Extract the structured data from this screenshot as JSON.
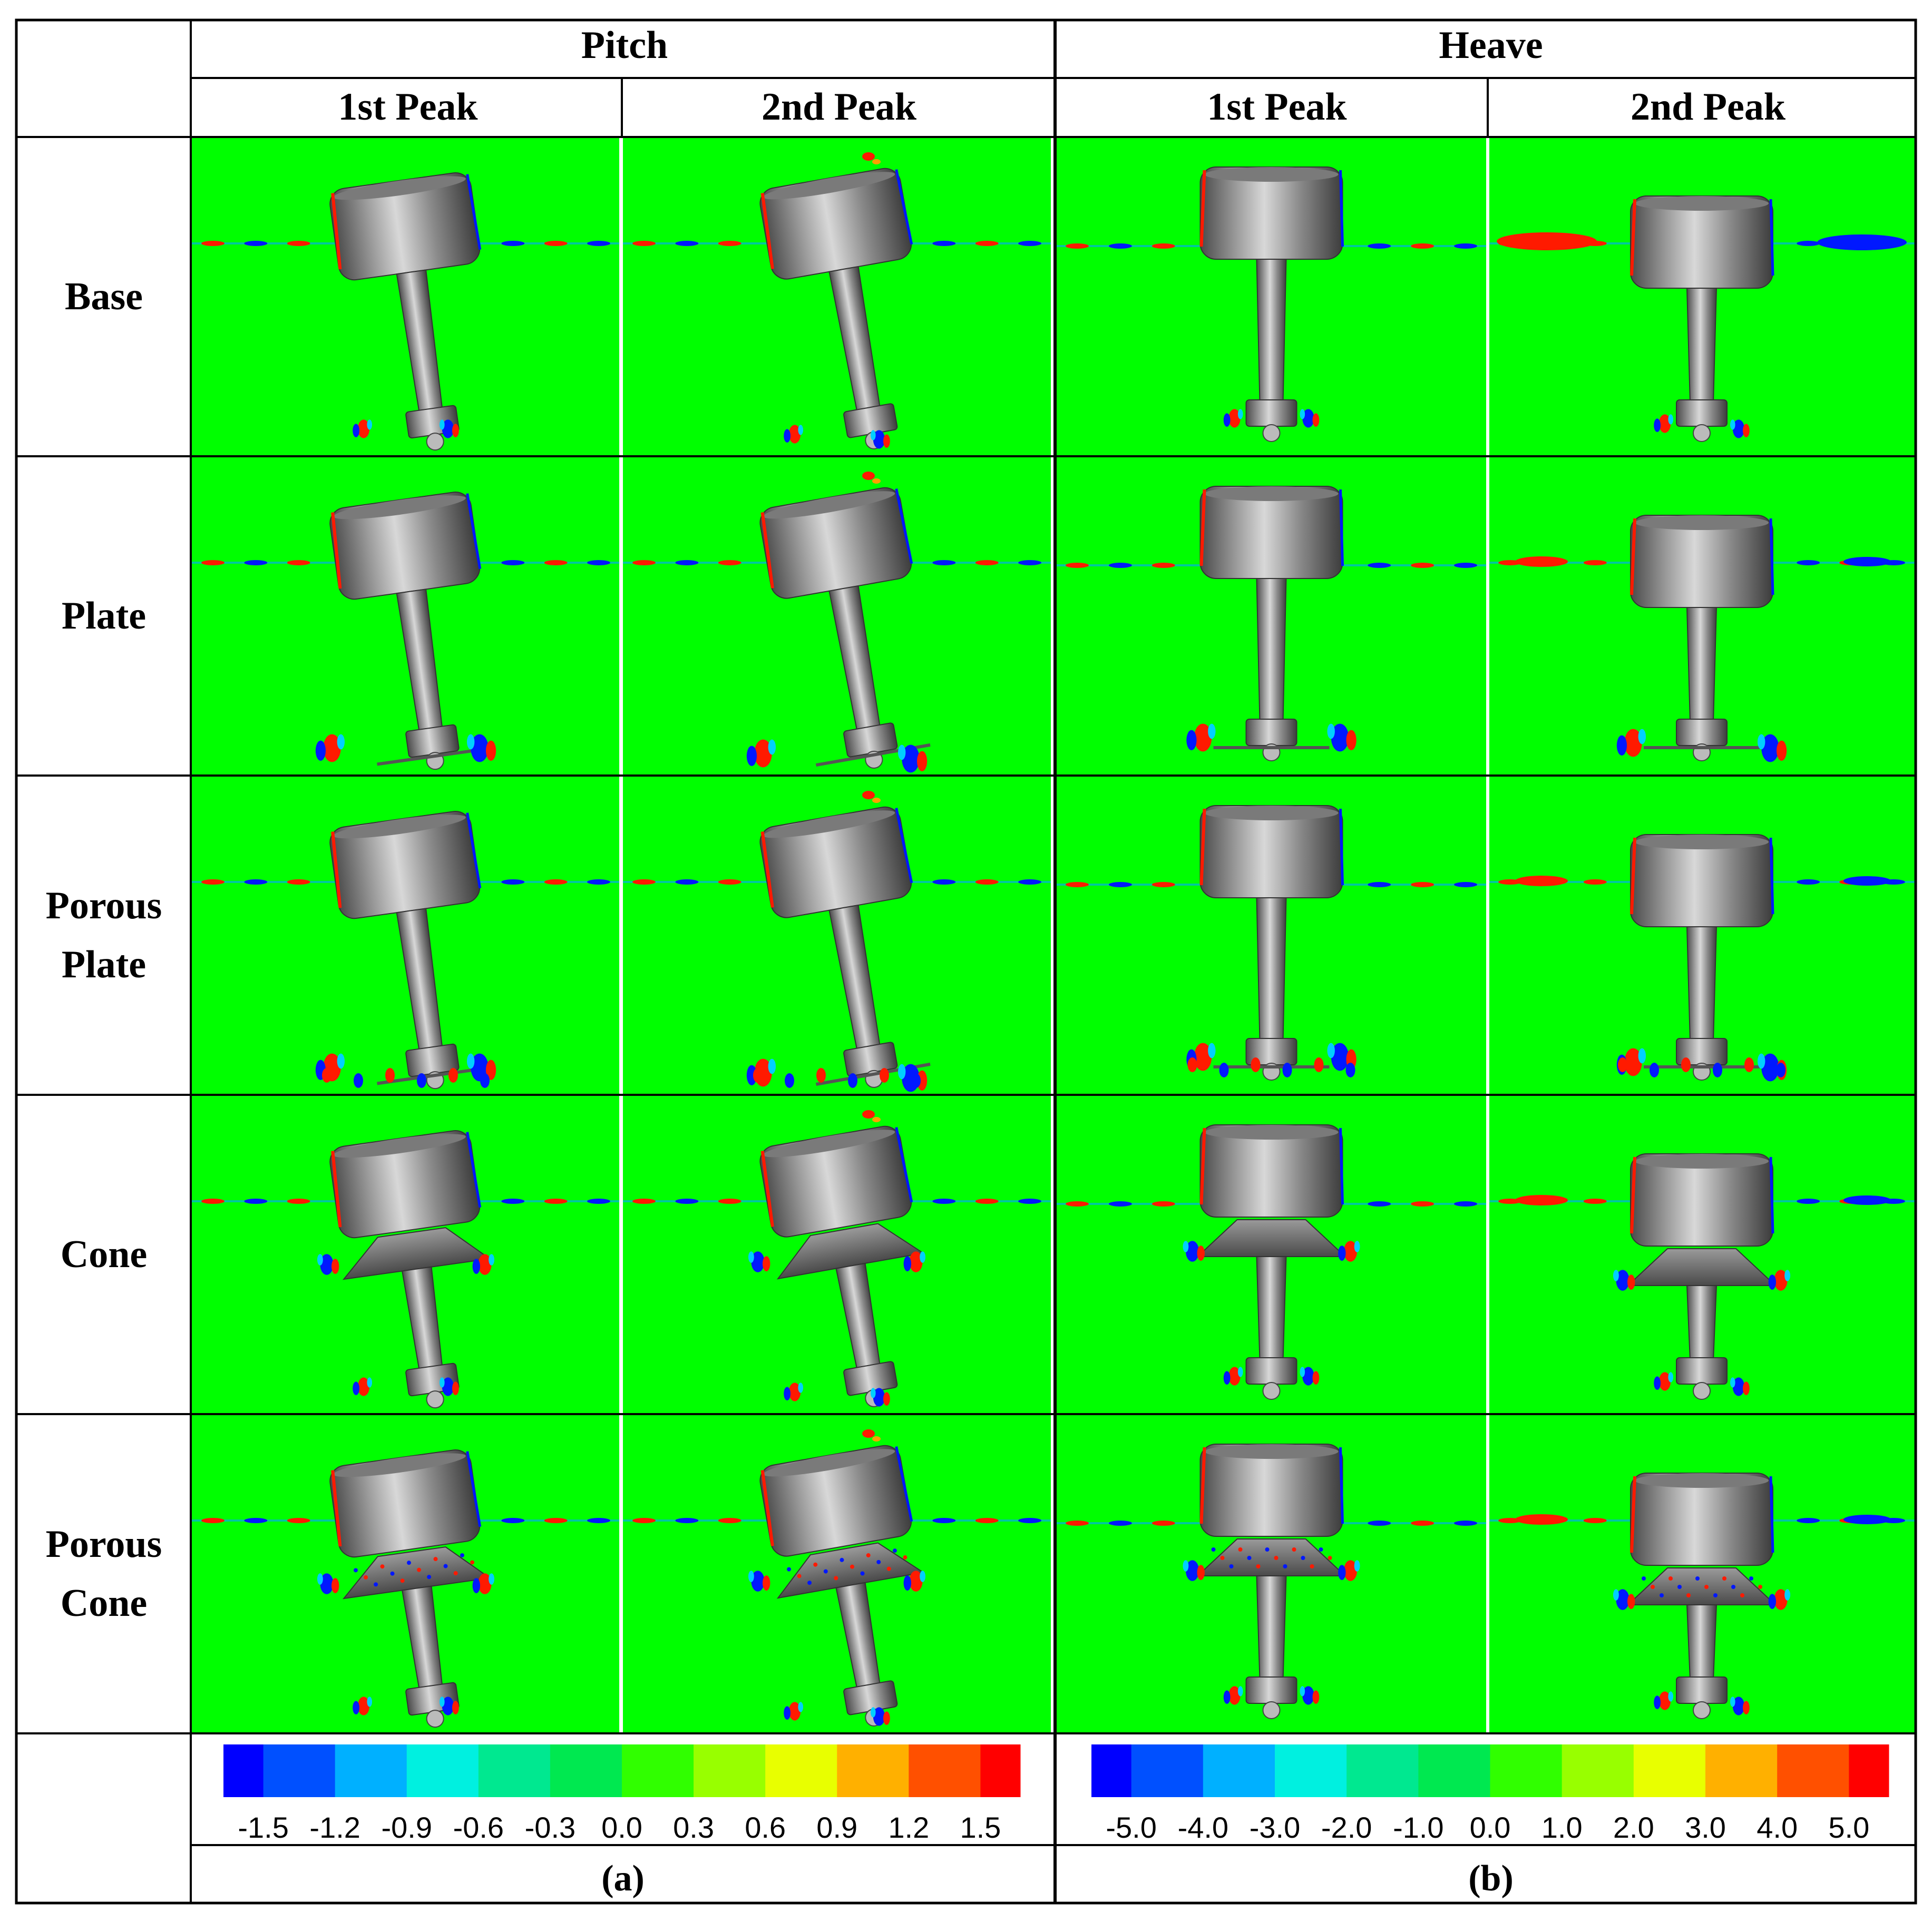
{
  "header": {
    "groups": [
      "Pitch",
      "Heave"
    ],
    "peaks": [
      "1st Peak",
      "2nd Peak",
      "1st Peak",
      "2nd Peak"
    ]
  },
  "rows": [
    {
      "label_lines": [
        "Base"
      ],
      "type": "base"
    },
    {
      "label_lines": [
        "Plate"
      ],
      "type": "plate"
    },
    {
      "label_lines": [
        "Porous",
        "Plate"
      ],
      "type": "porous-plate"
    },
    {
      "label_lines": [
        "Cone"
      ],
      "type": "cone"
    },
    {
      "label_lines": [
        "Porous",
        "Cone"
      ],
      "type": "porous-cone"
    }
  ],
  "colorbars": [
    {
      "ticks": [
        "-1.5",
        "-1.2",
        "-0.9",
        "-0.6",
        "-0.3",
        "0.0",
        "0.3",
        "0.6",
        "0.9",
        "1.2",
        "1.5"
      ]
    },
    {
      "ticks": [
        "-5.0",
        "-4.0",
        "-3.0",
        "-2.0",
        "-1.0",
        "0.0",
        "1.0",
        "2.0",
        "3.0",
        "4.0",
        "5.0"
      ]
    }
  ],
  "colormap": [
    "#0000ff",
    "#0050ff",
    "#00b0ff",
    "#00f0e0",
    "#00e890",
    "#00e850",
    "#30ff00",
    "#98ff00",
    "#e8ff00",
    "#ffb000",
    "#ff5000",
    "#ff0000"
  ],
  "field_color": "#00ff00",
  "captions": [
    "(a)",
    "(b)"
  ]
}
